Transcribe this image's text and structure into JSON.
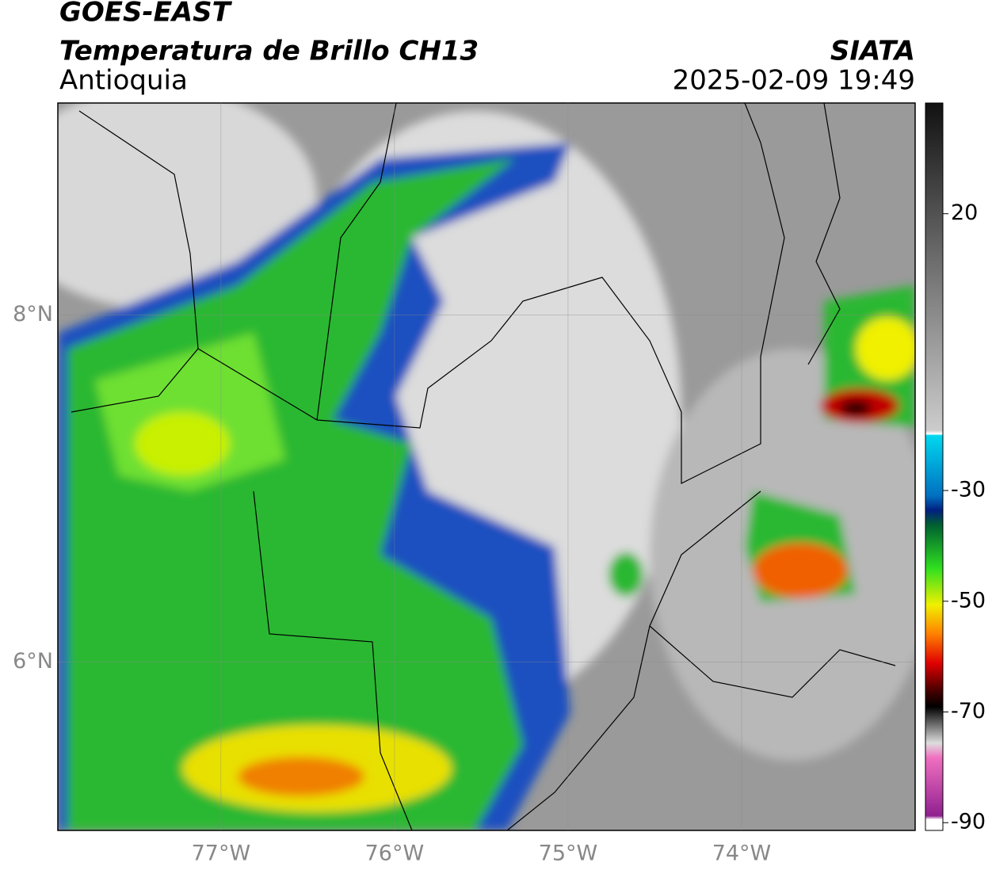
{
  "header": {
    "title": "GOES-EAST",
    "subtitle": "Temperatura de Brillo CH13",
    "region": "Antioquia",
    "source": "SIATA",
    "datetime": "2025-02-09 19:49"
  },
  "map": {
    "xlim": [
      -77.94,
      -73.0
    ],
    "ylim": [
      5.03,
      9.22
    ],
    "xticks": [
      {
        "value": -77,
        "label": "77°W"
      },
      {
        "value": -76,
        "label": "76°W"
      },
      {
        "value": -75,
        "label": "75°W"
      },
      {
        "value": -74,
        "label": "74°W"
      }
    ],
    "yticks": [
      {
        "value": 8,
        "label": "8°N"
      },
      {
        "value": 6,
        "label": "6°N"
      }
    ],
    "grid": true
  },
  "colorbar": {
    "ylim": [
      -91.4,
      40
    ],
    "yticks": [
      20,
      -30,
      -50,
      -70,
      -90
    ]
  }
}
